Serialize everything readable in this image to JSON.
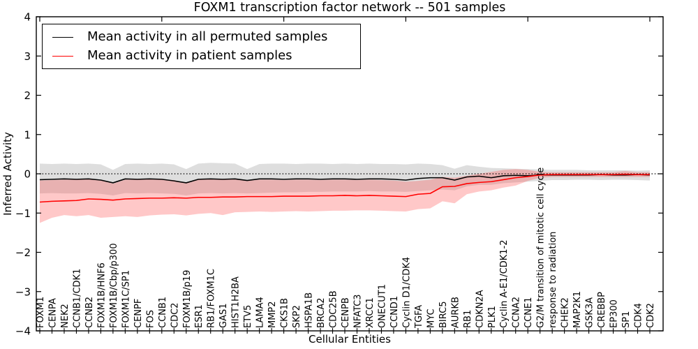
{
  "chart_data": {
    "type": "line",
    "title": "FOXM1 transcription factor network -- 501 samples",
    "xlabel": "Cellular Entities",
    "ylabel": "Inferred Activity",
    "ylim": [
      -4,
      4
    ],
    "grid": false,
    "zero_line_style": "dotted",
    "legend_position": "upper-left",
    "yticks": {
      "values": [
        4,
        3,
        2,
        1,
        0,
        -1,
        -2,
        -3,
        -4
      ],
      "labels": [
        "4",
        "3",
        "2",
        "1",
        "0",
        "−1",
        "−2",
        "−3",
        "−4"
      ]
    },
    "top_tick_indices": [
      0,
      10,
      20,
      30,
      40,
      50
    ],
    "categories": [
      "FOXM1",
      "CENPA",
      "NEK2",
      "CCNB1/CDK1",
      "CCNB2",
      "FOXM1B/HNF6",
      "FOXM1B/Cbp/p300",
      "FOXM1C/SP1",
      "CENPF",
      "FOS",
      "CCNB1",
      "CDC2",
      "FOXM1B/p19",
      "ESR1",
      "RB1/FOXM1C",
      "GAS1",
      "HIST1H2BA",
      "ETV5",
      "LAMA4",
      "MMP2",
      "CKS1B",
      "SKP2",
      "HSPA1B",
      "BRCA2",
      "CDC25B",
      "CENPB",
      "NFATC3",
      "XRCC1",
      "ONECUT1",
      "CCND1",
      "Cyclin D1/CDK4",
      "TGFA",
      "MYC",
      "BIRC5",
      "AURKB",
      "RB1",
      "CDKN2A",
      "PLK1",
      "Cyclin A-E1/CDK1-2",
      "CCNA2",
      "CCNE1",
      "G2/M transition of mitotic cell cycle",
      "response to radiation",
      "CHEK2",
      "MAP2K1",
      "GSK3A",
      "CREBBP",
      "EP300",
      "SP1",
      "CDK4",
      "CDK2"
    ],
    "series": [
      {
        "name": "Mean activity in all permuted samples",
        "color": "#000000",
        "band_color": "#bdbdbd",
        "band_opacity": 0.5,
        "values": [
          -0.15,
          -0.14,
          -0.13,
          -0.14,
          -0.13,
          -0.16,
          -0.23,
          -0.13,
          -0.14,
          -0.13,
          -0.14,
          -0.18,
          -0.23,
          -0.14,
          -0.13,
          -0.14,
          -0.13,
          -0.17,
          -0.13,
          -0.13,
          -0.14,
          -0.13,
          -0.13,
          -0.14,
          -0.13,
          -0.13,
          -0.14,
          -0.13,
          -0.13,
          -0.14,
          -0.16,
          -0.12,
          -0.1,
          -0.1,
          -0.16,
          -0.08,
          -0.06,
          -0.1,
          -0.05,
          -0.04,
          -0.05,
          -0.03,
          -0.03,
          -0.03,
          -0.03,
          -0.03,
          -0.02,
          -0.03,
          -0.03,
          -0.02,
          -0.03
        ],
        "band_upper": [
          0.26,
          0.25,
          0.26,
          0.25,
          0.26,
          0.24,
          0.1,
          0.25,
          0.26,
          0.25,
          0.26,
          0.24,
          0.12,
          0.26,
          0.28,
          0.27,
          0.26,
          0.12,
          0.25,
          0.26,
          0.26,
          0.25,
          0.26,
          0.26,
          0.25,
          0.26,
          0.25,
          0.26,
          0.25,
          0.25,
          0.24,
          0.26,
          0.25,
          0.22,
          0.13,
          0.22,
          0.18,
          0.15,
          0.14,
          0.13,
          0.12,
          0.11,
          0.1,
          0.1,
          0.1,
          0.09,
          0.09,
          0.09,
          0.09,
          0.08,
          0.09
        ],
        "band_lower": [
          -0.5,
          -0.49,
          -0.5,
          -0.5,
          -0.49,
          -0.51,
          -0.55,
          -0.49,
          -0.5,
          -0.49,
          -0.5,
          -0.51,
          -0.55,
          -0.5,
          -0.49,
          -0.5,
          -0.49,
          -0.5,
          -0.49,
          -0.48,
          -0.47,
          -0.47,
          -0.46,
          -0.46,
          -0.45,
          -0.45,
          -0.45,
          -0.44,
          -0.45,
          -0.45,
          -0.46,
          -0.44,
          -0.42,
          -0.4,
          -0.42,
          -0.32,
          -0.28,
          -0.28,
          -0.24,
          -0.22,
          -0.2,
          -0.18,
          -0.16,
          -0.16,
          -0.15,
          -0.15,
          -0.16,
          -0.15,
          -0.15,
          -0.16,
          -0.17
        ]
      },
      {
        "name": "Mean activity in patient samples",
        "color": "#ff0000",
        "band_color": "#ff5555",
        "band_opacity": 0.32,
        "values": [
          -0.72,
          -0.7,
          -0.69,
          -0.68,
          -0.64,
          -0.65,
          -0.67,
          -0.64,
          -0.63,
          -0.62,
          -0.62,
          -0.61,
          -0.62,
          -0.6,
          -0.6,
          -0.59,
          -0.59,
          -0.58,
          -0.58,
          -0.58,
          -0.57,
          -0.57,
          -0.57,
          -0.56,
          -0.56,
          -0.55,
          -0.56,
          -0.55,
          -0.56,
          -0.57,
          -0.58,
          -0.52,
          -0.5,
          -0.33,
          -0.32,
          -0.25,
          -0.22,
          -0.2,
          -0.15,
          -0.1,
          -0.07,
          -0.03,
          -0.02,
          -0.02,
          -0.02,
          -0.02,
          -0.02,
          -0.02,
          -0.01,
          -0.02,
          -0.02
        ],
        "band_upper": [
          -0.17,
          -0.16,
          -0.15,
          -0.15,
          -0.14,
          -0.15,
          -0.25,
          -0.15,
          -0.15,
          -0.14,
          -0.15,
          -0.16,
          -0.24,
          -0.15,
          -0.14,
          -0.15,
          -0.14,
          -0.18,
          -0.15,
          -0.15,
          -0.16,
          -0.15,
          -0.15,
          -0.16,
          -0.15,
          -0.15,
          -0.16,
          -0.15,
          -0.16,
          -0.17,
          -0.2,
          -0.18,
          -0.15,
          -0.08,
          -0.1,
          -0.05,
          0.0,
          0.05,
          0.1,
          0.12,
          0.1,
          0.05,
          0.04,
          0.04,
          0.04,
          0.04,
          0.04,
          0.04,
          0.07,
          0.04,
          0.04
        ],
        "band_lower": [
          -1.25,
          -1.12,
          -1.05,
          -1.08,
          -1.05,
          -1.12,
          -1.1,
          -1.08,
          -1.1,
          -1.06,
          -1.04,
          -1.03,
          -1.06,
          -1.02,
          -1.0,
          -1.05,
          -0.98,
          -0.97,
          -0.96,
          -0.97,
          -0.96,
          -0.95,
          -0.96,
          -0.95,
          -0.94,
          -0.94,
          -0.93,
          -0.93,
          -0.94,
          -0.95,
          -0.96,
          -0.9,
          -0.88,
          -0.7,
          -0.75,
          -0.52,
          -0.45,
          -0.42,
          -0.35,
          -0.3,
          -0.18,
          -0.1,
          -0.08,
          -0.08,
          -0.08,
          -0.08,
          -0.08,
          -0.08,
          -0.08,
          -0.08,
          -0.08
        ]
      }
    ]
  },
  "colors": {
    "permuted_line": "#000000",
    "patient_line": "#ff0000",
    "axis": "#000000",
    "background": "#ffffff"
  }
}
